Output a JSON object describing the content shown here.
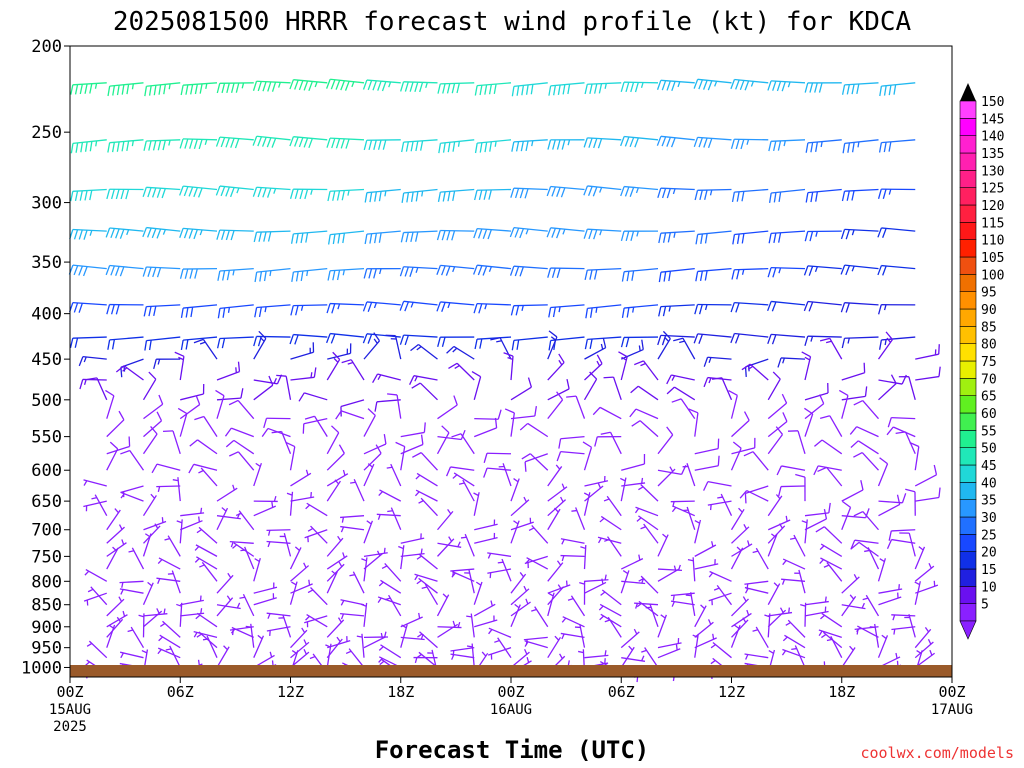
{
  "chart_data": {
    "type": "wind-barb-profile",
    "title": "2025081500 HRRR forecast wind profile (kt) for KDCA",
    "xlabel": "Forecast Time (UTC)",
    "ylabel": "",
    "y_scale": "log-pressure",
    "ylim": [
      1025,
      200
    ],
    "y_ticks": [
      "200",
      "250",
      "300",
      "350",
      "400",
      "450",
      "500",
      "550",
      "600",
      "650",
      "700",
      "750",
      "800",
      "850",
      "900",
      "950",
      "1000"
    ],
    "xlim": [
      0,
      48
    ],
    "x_ticks": [
      {
        "hour": 0,
        "label": "00Z",
        "sub1": "15AUG",
        "sub2": "2025"
      },
      {
        "hour": 6,
        "label": "06Z",
        "sub1": "",
        "sub2": ""
      },
      {
        "hour": 12,
        "label": "12Z",
        "sub1": "",
        "sub2": ""
      },
      {
        "hour": 18,
        "label": "18Z",
        "sub1": "",
        "sub2": ""
      },
      {
        "hour": 24,
        "label": "00Z",
        "sub1": "16AUG",
        "sub2": ""
      },
      {
        "hour": 30,
        "label": "06Z",
        "sub1": "",
        "sub2": ""
      },
      {
        "hour": 36,
        "label": "12Z",
        "sub1": "",
        "sub2": ""
      },
      {
        "hour": 42,
        "label": "18Z",
        "sub1": "",
        "sub2": ""
      },
      {
        "hour": 48,
        "label": "00Z",
        "sub1": "17AUG",
        "sub2": ""
      }
    ],
    "ground_color": "#9a5a2a",
    "colorbar": {
      "levels": [
        "5",
        "10",
        "15",
        "20",
        "25",
        "30",
        "35",
        "40",
        "45",
        "50",
        "55",
        "60",
        "65",
        "70",
        "75",
        "80",
        "85",
        "90",
        "95",
        "100",
        "105",
        "110",
        "115",
        "120",
        "125",
        "130",
        "135",
        "140",
        "145",
        "150"
      ],
      "colors": [
        "#8a20ff",
        "#6a10f0",
        "#2020e0",
        "#1030e8",
        "#1848ff",
        "#2070ff",
        "#2898ff",
        "#20b8f0",
        "#20d8d8",
        "#20e8b8",
        "#20f090",
        "#40f050",
        "#60f020",
        "#a0f010",
        "#e8f000",
        "#ffe000",
        "#ffc000",
        "#ffa800",
        "#ff9000",
        "#f07000",
        "#f05010",
        "#ff2000",
        "#ff1818",
        "#ff2040",
        "#ff2060",
        "#ff2088",
        "#ff20b0",
        "#ff20d0",
        "#ff00ff",
        "#ff40ff"
      ],
      "top_arrow_color": "#000000",
      "bottom_arrow_color": "#8a20ff"
    },
    "levels_hpa": [
      220,
      255,
      290,
      323,
      356,
      391,
      425,
      450,
      475,
      500,
      525,
      550,
      575,
      600,
      625,
      650,
      675,
      700,
      725,
      750,
      775,
      800,
      825,
      850,
      875,
      900,
      925,
      950,
      975,
      1000,
      1015
    ],
    "wind_profile": [
      {
        "p": 220,
        "spd": [
          60,
          55,
          45,
          40
        ]
      },
      {
        "p": 255,
        "spd": [
          55,
          50,
          40,
          30
        ]
      },
      {
        "p": 290,
        "spd": [
          50,
          45,
          35,
          25
        ]
      },
      {
        "p": 323,
        "spd": [
          45,
          40,
          35,
          20
        ]
      },
      {
        "p": 356,
        "spd": [
          40,
          35,
          30,
          20
        ]
      },
      {
        "p": 391,
        "spd": [
          30,
          25,
          25,
          15
        ]
      },
      {
        "p": 425,
        "spd": [
          20,
          20,
          20,
          15
        ]
      },
      {
        "p": 500,
        "spd": [
          10,
          10,
          10,
          10
        ]
      },
      {
        "p": 700,
        "spd": [
          5,
          5,
          5,
          10
        ]
      },
      {
        "p": 850,
        "spd": [
          5,
          5,
          5,
          5
        ]
      },
      {
        "p": 1000,
        "spd": [
          5,
          5,
          5,
          5
        ]
      }
    ],
    "wind_profile_hours": [
      0,
      16,
      32,
      48
    ]
  },
  "credit": "coolwx.com/models"
}
